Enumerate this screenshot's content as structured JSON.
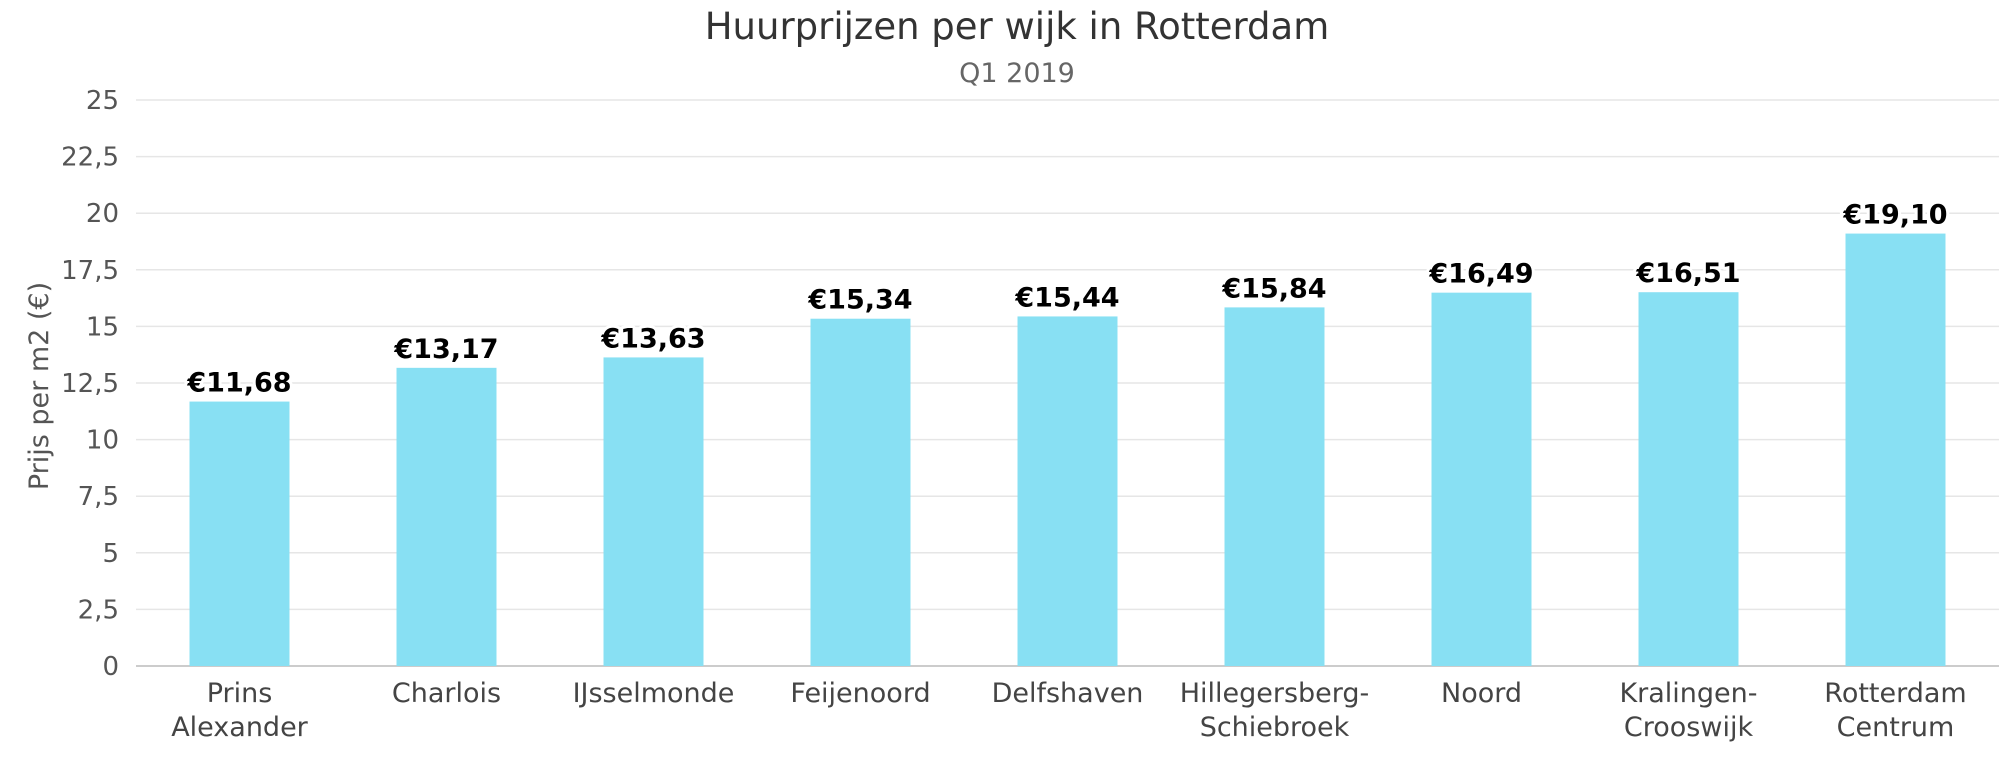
{
  "chart_data": {
    "type": "bar",
    "title": "Huurprijzen per wijk in Rotterdam",
    "subtitle": "Q1 2019",
    "ylabel": "Prijs per m2 (€)",
    "xlabel": "",
    "ylim": [
      0,
      25
    ],
    "yticks": [
      "0",
      "2,5",
      "5",
      "7,5",
      "10",
      "12,5",
      "15",
      "17,5",
      "20",
      "22,5",
      "25"
    ],
    "grid": true,
    "legend": "none",
    "bar_color": "#88e0f3",
    "categories": [
      [
        "Prins",
        "Alexander"
      ],
      [
        "Charlois"
      ],
      [
        "IJsselmonde"
      ],
      [
        "Feijenoord"
      ],
      [
        "Delfshaven"
      ],
      [
        "Hillegersberg-",
        "Schiebroek"
      ],
      [
        "Noord"
      ],
      [
        "Kralingen-",
        "Crooswijk"
      ],
      [
        "Rotterdam",
        "Centrum"
      ]
    ],
    "values": [
      11.68,
      13.17,
      13.63,
      15.34,
      15.44,
      15.84,
      16.49,
      16.51,
      19.1
    ],
    "data_labels": [
      "€11,68",
      "€13,17",
      "€13,63",
      "€15,34",
      "€15,44",
      "€15,84",
      "€16,49",
      "€16,51",
      "€19,10"
    ]
  }
}
